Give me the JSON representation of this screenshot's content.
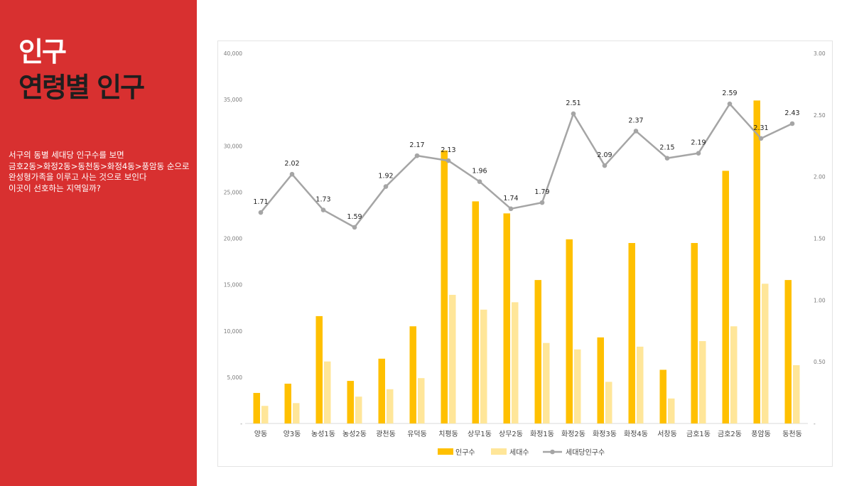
{
  "slide": {
    "title_line1": "인구",
    "title_line2": "연령별 인구",
    "description": [
      "서구의 동별 세대당 인구수를 보면",
      "금호2동>화정2동>동천동>화정4동>풍암동 순으로 완성형가족을 이루고 사는 것으로 보인다",
      "이곳이 선호하는 지역일까?"
    ]
  },
  "colors": {
    "sidebar": "#d83030",
    "population": "#ffc000",
    "households": "#ffe699",
    "per_household": "#a5a5a5"
  },
  "chart_data": {
    "type": "bar",
    "categories": [
      "양동",
      "양3동",
      "농성1동",
      "농성2동",
      "광천동",
      "유덕동",
      "치평동",
      "상무1동",
      "상무2동",
      "화정1동",
      "화정2동",
      "화정3동",
      "화정4동",
      "서창동",
      "금호1동",
      "금호2동",
      "풍암동",
      "동천동"
    ],
    "series": [
      {
        "name": "인구수",
        "type": "bar",
        "axis": "left",
        "values": [
          3300,
          4300,
          11600,
          4600,
          7000,
          10500,
          29500,
          24000,
          22700,
          15500,
          19900,
          9300,
          19500,
          5800,
          19500,
          27300,
          34900,
          15500
        ]
      },
      {
        "name": "세대수",
        "type": "bar",
        "axis": "left",
        "values": [
          1900,
          2200,
          6700,
          2900,
          3700,
          4900,
          13900,
          12300,
          13100,
          8700,
          8000,
          4500,
          8300,
          2700,
          8900,
          10500,
          15100,
          6300
        ]
      },
      {
        "name": "세대당인구수",
        "type": "line",
        "axis": "right",
        "values": [
          1.71,
          2.02,
          1.73,
          1.59,
          1.92,
          2.17,
          2.13,
          1.96,
          1.74,
          1.79,
          2.51,
          2.09,
          2.37,
          2.15,
          2.19,
          2.59,
          2.31,
          2.43
        ]
      }
    ],
    "left_axis": {
      "ylim": [
        0,
        40000
      ],
      "ticks": [
        0,
        5000,
        10000,
        15000,
        20000,
        25000,
        30000,
        35000,
        40000
      ],
      "tick_labels": [
        "-",
        "5,000",
        "10,000",
        "15,000",
        "20,000",
        "25,000",
        "30,000",
        "35,000",
        "40,000"
      ]
    },
    "right_axis": {
      "ylim": [
        0,
        3
      ],
      "ticks": [
        0,
        0.5,
        1,
        1.5,
        2,
        2.5,
        3
      ],
      "tick_labels": [
        "-",
        "0.50",
        "1.00",
        "1.50",
        "2.00",
        "2.50",
        "3.00"
      ]
    },
    "legend_position": "bottom",
    "grid": false
  }
}
